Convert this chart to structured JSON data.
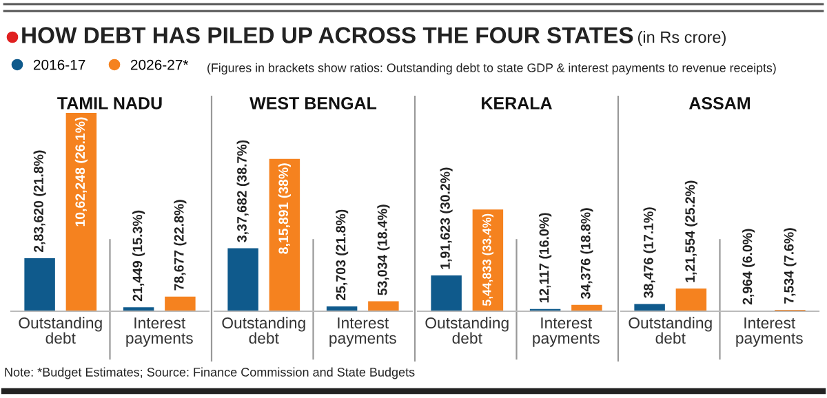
{
  "chart_data": [
    {
      "type": "bar",
      "title": "TAMIL NADU",
      "categories": [
        "Outstanding\ndebt",
        "Interest\npayments"
      ],
      "legend": "top left",
      "annotations": [
        "HOW DEBT HAS PILED UP ACROSS THE FOUR STATES",
        "(in Rs crore)",
        "(Figures in brackets show ratios: Outstanding debt to state GDP & interest payments to revenue receipts)",
        "Note: *Budget Estimates; Source: Finance Commission and State Budgets"
      ],
      "series": [
        {
          "name": "2016-17",
          "color": "#0f5a8c",
          "values": [
            283620,
            21449
          ],
          "value_labels": [
            "2,83,620 (21.8%)",
            "21,449 (15.3%)"
          ]
        },
        {
          "name": "2026-27*",
          "color": "#f5821f",
          "values": [
            1062248,
            78677
          ],
          "value_labels": [
            "10,62,248 (26.1%)",
            "78,677 (22.8%)"
          ]
        }
      ]
    },
    {
      "type": "bar",
      "title": "WEST BENGAL",
      "categories": [
        "Outstanding\ndebt",
        "Interest\npayments"
      ],
      "series": [
        {
          "color": "#0f5a8c",
          "values": [
            337682,
            25703
          ],
          "value_labels": [
            "3,37,682 (38.7%)",
            "25,703 (21.8%)"
          ]
        },
        {
          "color": "#f5821f",
          "values": [
            815891,
            53034
          ],
          "value_labels": [
            "8,15,891 (38%)",
            "53,034 (18.4%)"
          ]
        }
      ]
    },
    {
      "type": "bar",
      "title": "KERALA",
      "categories": [
        "Outstanding\ndebt",
        "Interest\npayments"
      ],
      "series": [
        {
          "color": "#0f5a8c",
          "values": [
            191623,
            12117
          ],
          "value_labels": [
            "1,91,623 (30.2%)",
            "12,117 (16.0%)"
          ]
        },
        {
          "color": "#f5821f",
          "values": [
            544833,
            34376
          ],
          "value_labels": [
            "5,44,833 (33.4%)",
            "34,376 (18.8%)"
          ]
        }
      ]
    },
    {
      "type": "bar",
      "title": "ASSAM",
      "categories": [
        "Outstanding\ndebt",
        "Interest\npayments"
      ],
      "series": [
        {
          "color": "#0f5a8c",
          "values": [
            38476,
            2964
          ],
          "value_labels": [
            "38,476 (17.1%)",
            "2,964 (6.0%)"
          ]
        },
        {
          "color": "#f5821f",
          "values": [
            121554,
            7534
          ],
          "value_labels": [
            "1,21,554 (25.2%)",
            "7,534 (7.6%)"
          ]
        }
      ]
    }
  ]
}
